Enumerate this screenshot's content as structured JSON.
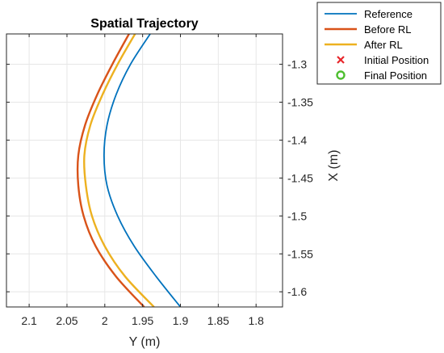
{
  "chart_data": {
    "type": "line",
    "title": "Spatial Trajectory",
    "xlabel": "Y (m)",
    "ylabel": "X (m)",
    "xlim": [
      2.13,
      1.765
    ],
    "ylim": [
      -1.62,
      -1.26
    ],
    "x_reversed": true,
    "x_ticks": [
      2.1,
      2.05,
      2.0,
      1.95,
      1.9,
      1.85,
      1.8
    ],
    "x_tick_labels": [
      "2.1",
      "2.05",
      "2",
      "1.95",
      "1.9",
      "1.85",
      "1.8"
    ],
    "y_ticks": [
      -1.3,
      -1.35,
      -1.4,
      -1.45,
      -1.5,
      -1.55,
      -1.6
    ],
    "y_tick_labels": [
      "-1.3",
      "-1.35",
      "-1.4",
      "-1.45",
      "-1.5",
      "-1.55",
      "-1.6"
    ],
    "y_axis_side": "right",
    "grid": true,
    "legend_position": "top-right outside",
    "series": [
      {
        "name": "Reference",
        "color": "#0072BD",
        "points": [
          [
            1.9,
            -1.62
          ],
          [
            1.932,
            -1.58
          ],
          [
            1.961,
            -1.54
          ],
          [
            1.983,
            -1.5
          ],
          [
            1.997,
            -1.46
          ],
          [
            2.001,
            -1.42
          ],
          [
            1.997,
            -1.38
          ],
          [
            1.985,
            -1.34
          ],
          [
            1.966,
            -1.3
          ],
          [
            1.94,
            -1.26
          ]
        ]
      },
      {
        "name": "Before RL",
        "color": "#D95319",
        "points": [
          [
            1.948,
            -1.62
          ],
          [
            1.985,
            -1.58
          ],
          [
            2.012,
            -1.54
          ],
          [
            2.028,
            -1.5
          ],
          [
            2.035,
            -1.46
          ],
          [
            2.035,
            -1.42
          ],
          [
            2.026,
            -1.38
          ],
          [
            2.01,
            -1.34
          ],
          [
            1.99,
            -1.3
          ],
          [
            1.968,
            -1.26
          ]
        ]
      },
      {
        "name": "After RL",
        "color": "#EDB120",
        "points": [
          [
            1.935,
            -1.62
          ],
          [
            1.973,
            -1.58
          ],
          [
            2.0,
            -1.54
          ],
          [
            2.017,
            -1.5
          ],
          [
            2.025,
            -1.46
          ],
          [
            2.027,
            -1.42
          ],
          [
            2.019,
            -1.38
          ],
          [
            2.003,
            -1.34
          ],
          [
            1.983,
            -1.3
          ],
          [
            1.96,
            -1.26
          ]
        ]
      }
    ],
    "markers": [
      {
        "name": "Initial Position",
        "symbol": "x",
        "color": "#E8262B",
        "points": []
      },
      {
        "name": "Final Position",
        "symbol": "o",
        "color": "#4DBF2F",
        "points": []
      }
    ]
  }
}
